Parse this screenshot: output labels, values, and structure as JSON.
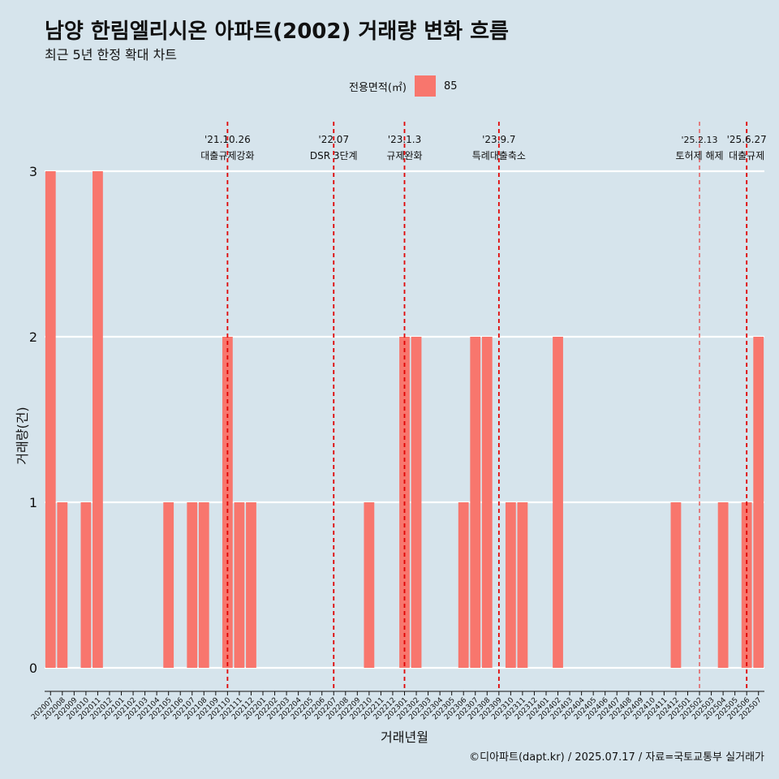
{
  "header": {
    "title": "남양 한림엘리시온 아파트(2002) 거래량 변화 흐름",
    "subtitle": "최근 5년 한정 확대 차트"
  },
  "legend": {
    "title": "전용면적(㎡)",
    "entries": [
      {
        "label": "85",
        "color": "#f8766d"
      }
    ]
  },
  "caption": "©디아파트(dapt.kr) / 2025.07.17 / 자료=국토교통부 실거래가",
  "chart_data": {
    "type": "bar",
    "title": "남양 한림엘리시온 아파트(2002) 거래량 변화 흐름",
    "subtitle": "최근 5년 한정 확대 차트",
    "xlabel": "거래년월",
    "ylabel": "거래량(건)",
    "ylim": [
      0,
      3
    ],
    "yticks": [
      0,
      1,
      2,
      3
    ],
    "grid": "horizontal",
    "legend_position": "top",
    "categories": [
      "202007",
      "202008",
      "202009",
      "202010",
      "202011",
      "202012",
      "202101",
      "202102",
      "202103",
      "202104",
      "202105",
      "202106",
      "202107",
      "202108",
      "202109",
      "202110",
      "202111",
      "202112",
      "202201",
      "202202",
      "202203",
      "202204",
      "202205",
      "202206",
      "202207",
      "202208",
      "202209",
      "202210",
      "202211",
      "202212",
      "202301",
      "202302",
      "202303",
      "202304",
      "202305",
      "202306",
      "202307",
      "202308",
      "202309",
      "202310",
      "202311",
      "202312",
      "202401",
      "202402",
      "202403",
      "202404",
      "202405",
      "202406",
      "202407",
      "202408",
      "202409",
      "202410",
      "202411",
      "202412",
      "202501",
      "202502",
      "202503",
      "202504",
      "202505",
      "202506",
      "202507"
    ],
    "series": [
      {
        "name": "85",
        "color": "#f8766d",
        "values": [
          3,
          1,
          0,
          1,
          3,
          0,
          0,
          0,
          0,
          0,
          1,
          0,
          1,
          1,
          0,
          2,
          1,
          1,
          0,
          0,
          0,
          0,
          0,
          0,
          0,
          0,
          0,
          1,
          0,
          0,
          2,
          2,
          0,
          0,
          0,
          1,
          2,
          2,
          0,
          1,
          1,
          0,
          0,
          2,
          0,
          0,
          0,
          0,
          0,
          0,
          0,
          0,
          0,
          1,
          0,
          0,
          0,
          1,
          0,
          1,
          2
        ]
      }
    ],
    "annotations": [
      {
        "date": "'21.10.26",
        "label": "대출규제강화",
        "x": "202110",
        "style": "dashed"
      },
      {
        "date": "'22.07",
        "label": "DSR 3단계",
        "x": "202207",
        "style": "dashed"
      },
      {
        "date": "'23.1.3",
        "label": "규제완화",
        "x": "202301",
        "style": "dashed"
      },
      {
        "date": "'23.9.7",
        "label": "특례대출축소",
        "x": "202309",
        "style": "dashed"
      },
      {
        "date": "'25.2.13",
        "label": "토허제 해제",
        "x": "202502",
        "style": "dashed-thin"
      },
      {
        "date": "'25.6.27",
        "label": "대출규제",
        "x": "202506",
        "style": "dashed"
      }
    ]
  }
}
